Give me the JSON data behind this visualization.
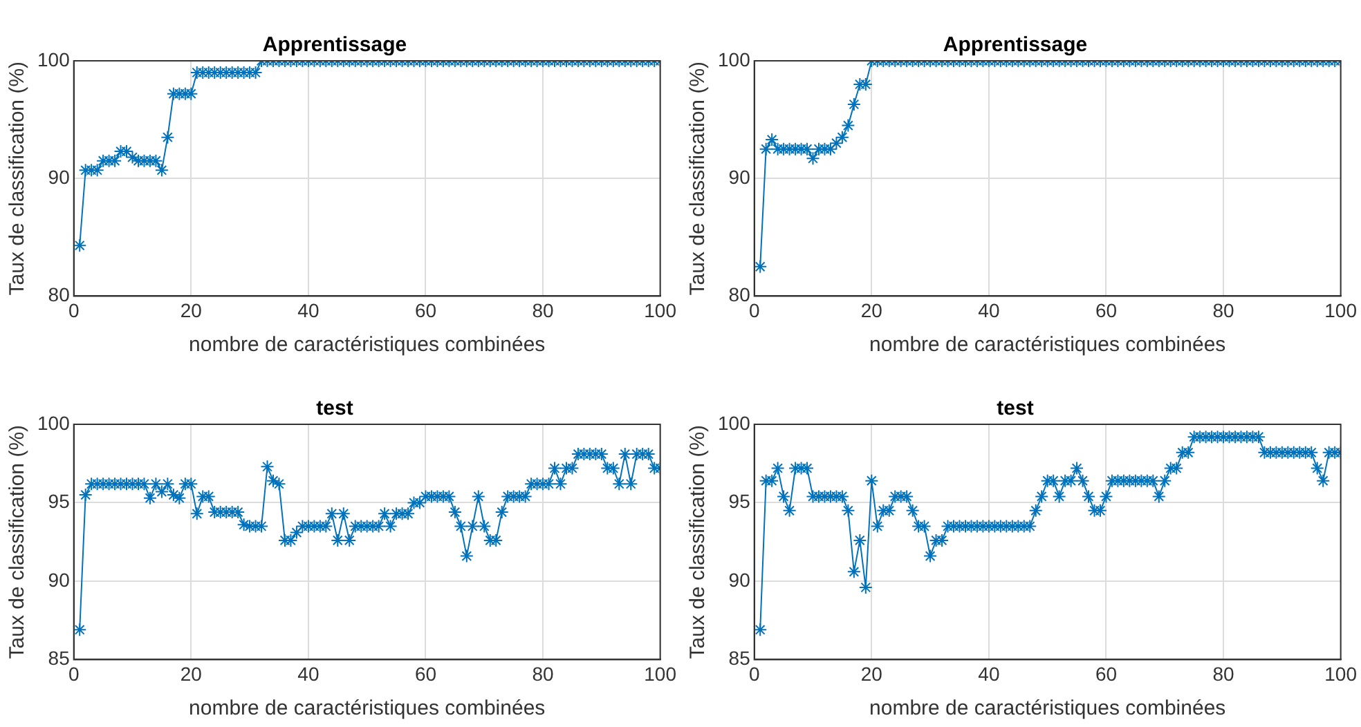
{
  "chart_data": [
    {
      "type": "line",
      "title": "Apprentissage",
      "xlabel": "nombre de caractéristiques combinées",
      "ylabel": "Taux de classification (%)",
      "xlim": [
        0,
        100
      ],
      "xticks": [
        0,
        20,
        40,
        60,
        80,
        100
      ],
      "ylim": [
        80,
        100
      ],
      "yticks": [
        80,
        90,
        100
      ],
      "grid": true,
      "legend": false,
      "marker": "cross",
      "series": [
        {
          "color": "#0072bd",
          "x": [
            1,
            2,
            3,
            4,
            5,
            6,
            7,
            8,
            9,
            10,
            11,
            12,
            13,
            14,
            15,
            16,
            17,
            18,
            19,
            20,
            21,
            22,
            23,
            24,
            25,
            26,
            27,
            28,
            29,
            30,
            31,
            32,
            33,
            34,
            35,
            36,
            37,
            38,
            39,
            40,
            41,
            42,
            43,
            44,
            45,
            46,
            47,
            48,
            49,
            50,
            51,
            52,
            53,
            54,
            55,
            56,
            57,
            58,
            59,
            60,
            61,
            62,
            63,
            64,
            65,
            66,
            67,
            68,
            69,
            70,
            71,
            72,
            73,
            74,
            75,
            76,
            77,
            78,
            79,
            80,
            81,
            82,
            83,
            84,
            85,
            86,
            87,
            88,
            89,
            90,
            91,
            92,
            93,
            94,
            95,
            96,
            97,
            98,
            99,
            100
          ],
          "values": [
            84.3,
            90.7,
            90.7,
            90.7,
            91.5,
            91.5,
            91.5,
            92.3,
            92.3,
            91.8,
            91.5,
            91.5,
            91.5,
            91.5,
            90.7,
            93.5,
            97.2,
            97.2,
            97.2,
            97.2,
            99,
            99,
            99,
            99,
            99,
            99,
            99,
            99,
            99,
            99,
            99,
            100,
            100,
            100,
            100,
            100,
            100,
            100,
            100,
            100,
            100,
            100,
            100,
            100,
            100,
            100,
            100,
            100,
            100,
            100,
            100,
            100,
            100,
            100,
            100,
            100,
            100,
            100,
            100,
            100,
            100,
            100,
            100,
            100,
            100,
            100,
            100,
            100,
            100,
            100,
            100,
            100,
            100,
            100,
            100,
            100,
            100,
            100,
            100,
            100,
            100,
            100,
            100,
            100,
            100,
            100,
            100,
            100,
            100,
            100,
            100,
            100,
            100,
            100,
            100,
            100,
            100,
            100,
            100,
            100
          ]
        }
      ]
    },
    {
      "type": "line",
      "title": "Apprentissage",
      "xlabel": "nombre de caractéristiques combinées",
      "ylabel": "Taux de classification (%)",
      "xlim": [
        0,
        100
      ],
      "xticks": [
        0,
        20,
        40,
        60,
        80,
        100
      ],
      "ylim": [
        80,
        100
      ],
      "yticks": [
        80,
        90,
        100
      ],
      "grid": true,
      "legend": false,
      "marker": "cross",
      "series": [
        {
          "color": "#0072bd",
          "x": [
            1,
            2,
            3,
            4,
            5,
            6,
            7,
            8,
            9,
            10,
            11,
            12,
            13,
            14,
            15,
            16,
            17,
            18,
            19,
            20,
            21,
            22,
            23,
            24,
            25,
            26,
            27,
            28,
            29,
            30,
            31,
            32,
            33,
            34,
            35,
            36,
            37,
            38,
            39,
            40,
            41,
            42,
            43,
            44,
            45,
            46,
            47,
            48,
            49,
            50,
            51,
            52,
            53,
            54,
            55,
            56,
            57,
            58,
            59,
            60,
            61,
            62,
            63,
            64,
            65,
            66,
            67,
            68,
            69,
            70,
            71,
            72,
            73,
            74,
            75,
            76,
            77,
            78,
            79,
            80,
            81,
            82,
            83,
            84,
            85,
            86,
            87,
            88,
            89,
            90,
            91,
            92,
            93,
            94,
            95,
            96,
            97,
            98,
            99,
            100
          ],
          "values": [
            82.5,
            92.5,
            93.3,
            92.5,
            92.5,
            92.5,
            92.5,
            92.5,
            92.5,
            91.7,
            92.5,
            92.5,
            92.5,
            93,
            93.5,
            94.5,
            96.3,
            98,
            98,
            100,
            100,
            100,
            100,
            100,
            100,
            100,
            100,
            100,
            100,
            100,
            100,
            100,
            100,
            100,
            100,
            100,
            100,
            100,
            100,
            100,
            100,
            100,
            100,
            100,
            100,
            100,
            100,
            100,
            100,
            100,
            100,
            100,
            100,
            100,
            100,
            100,
            100,
            100,
            100,
            100,
            100,
            100,
            100,
            100,
            100,
            100,
            100,
            100,
            100,
            100,
            100,
            100,
            100,
            100,
            100,
            100,
            100,
            100,
            100,
            100,
            100,
            100,
            100,
            100,
            100,
            100,
            100,
            100,
            100,
            100,
            100,
            100,
            100,
            100,
            100,
            100,
            100,
            100,
            100,
            100
          ]
        }
      ]
    },
    {
      "type": "line",
      "title": "test",
      "xlabel": "nombre de caractéristiques combinées",
      "ylabel": "Taux de classification (%)",
      "xlim": [
        0,
        100
      ],
      "xticks": [
        0,
        20,
        40,
        60,
        80,
        100
      ],
      "ylim": [
        85,
        100
      ],
      "yticks": [
        85,
        90,
        95,
        100
      ],
      "grid": true,
      "legend": false,
      "marker": "cross",
      "series": [
        {
          "color": "#0072bd",
          "x": [
            1,
            2,
            3,
            4,
            5,
            6,
            7,
            8,
            9,
            10,
            11,
            12,
            13,
            14,
            15,
            16,
            17,
            18,
            19,
            20,
            21,
            22,
            23,
            24,
            25,
            26,
            27,
            28,
            29,
            30,
            31,
            32,
            33,
            34,
            35,
            36,
            37,
            38,
            39,
            40,
            41,
            42,
            43,
            44,
            45,
            46,
            47,
            48,
            49,
            50,
            51,
            52,
            53,
            54,
            55,
            56,
            57,
            58,
            59,
            60,
            61,
            62,
            63,
            64,
            65,
            66,
            67,
            68,
            69,
            70,
            71,
            72,
            73,
            74,
            75,
            76,
            77,
            78,
            79,
            80,
            81,
            82,
            83,
            84,
            85,
            86,
            87,
            88,
            89,
            90,
            91,
            92,
            93,
            94,
            95,
            96,
            97,
            98,
            99,
            100
          ],
          "values": [
            86.9,
            95.5,
            96.2,
            96.2,
            96.2,
            96.2,
            96.2,
            96.2,
            96.2,
            96.2,
            96.2,
            96.2,
            95.3,
            96.2,
            95.7,
            96.2,
            95.5,
            95.3,
            96.2,
            96.2,
            94.3,
            95.4,
            95.4,
            94.4,
            94.4,
            94.4,
            94.4,
            94.4,
            93.6,
            93.5,
            93.5,
            93.5,
            97.3,
            96.4,
            96.2,
            92.6,
            92.6,
            93.1,
            93.5,
            93.5,
            93.5,
            93.5,
            93.5,
            94.3,
            92.6,
            94.3,
            92.6,
            93.5,
            93.5,
            93.5,
            93.5,
            93.5,
            94.3,
            93.5,
            94.3,
            94.3,
            94.3,
            95,
            95,
            95.4,
            95.4,
            95.4,
            95.4,
            95.4,
            94.4,
            93.5,
            91.6,
            93.5,
            95.4,
            93.5,
            92.6,
            92.6,
            94.4,
            95.4,
            95.4,
            95.4,
            95.4,
            96.2,
            96.2,
            96.2,
            96.2,
            97.2,
            96.2,
            97.2,
            97.2,
            98.1,
            98.1,
            98.1,
            98.1,
            98.1,
            97.2,
            97.2,
            96.2,
            98.1,
            96.2,
            98.1,
            98.1,
            98.1,
            97.2,
            97.2
          ]
        }
      ]
    },
    {
      "type": "line",
      "title": "test",
      "xlabel": "nombre de caractéristiques combinées",
      "ylabel": "Taux de classification (%)",
      "xlim": [
        0,
        100
      ],
      "xticks": [
        0,
        20,
        40,
        60,
        80,
        100
      ],
      "ylim": [
        85,
        100
      ],
      "yticks": [
        85,
        90,
        95,
        100
      ],
      "grid": true,
      "legend": false,
      "marker": "cross",
      "series": [
        {
          "color": "#0072bd",
          "x": [
            1,
            2,
            3,
            4,
            5,
            6,
            7,
            8,
            9,
            10,
            11,
            12,
            13,
            14,
            15,
            16,
            17,
            18,
            19,
            20,
            21,
            22,
            23,
            24,
            25,
            26,
            27,
            28,
            29,
            30,
            31,
            32,
            33,
            34,
            35,
            36,
            37,
            38,
            39,
            40,
            41,
            42,
            43,
            44,
            45,
            46,
            47,
            48,
            49,
            50,
            51,
            52,
            53,
            54,
            55,
            56,
            57,
            58,
            59,
            60,
            61,
            62,
            63,
            64,
            65,
            66,
            67,
            68,
            69,
            70,
            71,
            72,
            73,
            74,
            75,
            76,
            77,
            78,
            79,
            80,
            81,
            82,
            83,
            84,
            85,
            86,
            87,
            88,
            89,
            90,
            91,
            92,
            93,
            94,
            95,
            96,
            97,
            98,
            99,
            100
          ],
          "values": [
            86.9,
            96.4,
            96.4,
            97.2,
            95.4,
            94.5,
            97.2,
            97.2,
            97.2,
            95.4,
            95.4,
            95.4,
            95.4,
            95.4,
            95.4,
            94.5,
            90.6,
            92.6,
            89.6,
            96.4,
            93.5,
            94.5,
            94.5,
            95.4,
            95.4,
            95.4,
            94.5,
            93.5,
            93.5,
            91.6,
            92.6,
            92.6,
            93.5,
            93.5,
            93.5,
            93.5,
            93.5,
            93.5,
            93.5,
            93.5,
            93.5,
            93.5,
            93.5,
            93.5,
            93.5,
            93.5,
            93.5,
            94.5,
            95.4,
            96.4,
            96.4,
            95.4,
            96.4,
            96.4,
            97.2,
            96.4,
            95.4,
            94.5,
            94.5,
            95.4,
            96.4,
            96.4,
            96.4,
            96.4,
            96.4,
            96.4,
            96.4,
            96.4,
            95.4,
            96.4,
            97.2,
            97.2,
            98.2,
            98.2,
            99.2,
            99.2,
            99.2,
            99.2,
            99.2,
            99.2,
            99.2,
            99.2,
            99.2,
            99.2,
            99.2,
            99.2,
            98.2,
            98.2,
            98.2,
            98.2,
            98.2,
            98.2,
            98.2,
            98.2,
            98.2,
            97.2,
            96.4,
            98.2,
            98.2,
            98.2
          ]
        }
      ]
    }
  ]
}
